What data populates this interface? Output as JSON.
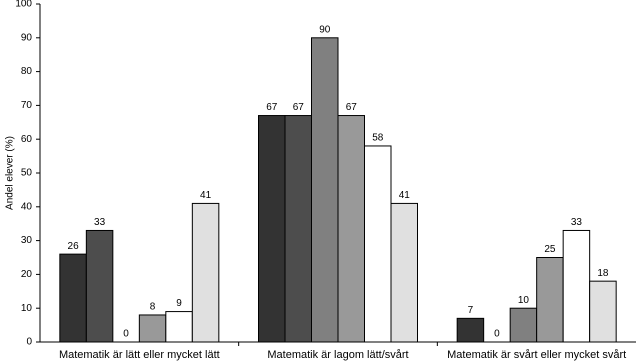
{
  "chart_data": {
    "type": "bar",
    "y_label": "Andel elever (%)",
    "categories": [
      "Matematik är lätt eller mycket lätt",
      "Matematik är lagom lätt/svårt",
      "Matematik är svårt eller mycket svårt"
    ],
    "series": [
      {
        "color": "#333333",
        "values": [
          26,
          67,
          7
        ]
      },
      {
        "color": "#4d4d4d",
        "values": [
          33,
          67,
          0
        ]
      },
      {
        "color": "#808080",
        "values": [
          0,
          90,
          10
        ]
      },
      {
        "color": "#999999",
        "values": [
          8,
          67,
          25
        ]
      },
      {
        "color": "#ffffff",
        "values": [
          9,
          58,
          33
        ]
      },
      {
        "color": "#e0e0e0",
        "values": [
          41,
          41,
          18
        ]
      }
    ],
    "ylim": [
      0,
      100
    ],
    "yticks": [
      0,
      10,
      20,
      30,
      40,
      50,
      60,
      70,
      80,
      90,
      100
    ],
    "grid": false
  }
}
